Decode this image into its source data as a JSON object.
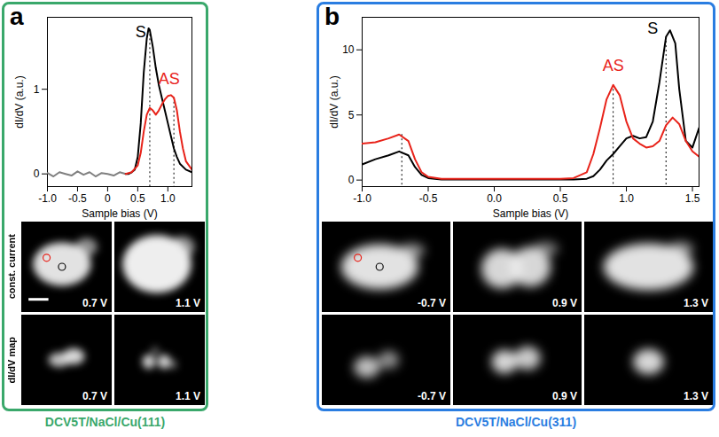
{
  "chart_data": [
    {
      "type": "line",
      "x_label": "Sample bias (V)",
      "y_label": "dI/dV (a.u.)",
      "xlim": [
        -1.0,
        1.4
      ],
      "ylim": [
        -0.15,
        1.85
      ],
      "xticks": [
        {
          "value": -1,
          "label": "-1.0"
        },
        -0.5,
        0,
        0.5,
        {
          "value": 1,
          "label": "1.0"
        }
      ],
      "yticks": [
        0,
        1
      ],
      "series": [
        {
          "color": "#808080",
          "x": [
            -1.0,
            -0.9,
            -0.8,
            -0.7,
            -0.6,
            -0.5,
            -0.4,
            -0.3,
            -0.2,
            -0.1,
            0.0,
            0.1,
            0.2,
            0.3
          ],
          "values": [
            0.01,
            -0.03,
            0.02,
            0.0,
            -0.02,
            0.03,
            -0.01,
            0.02,
            -0.03,
            0.01,
            0.0,
            -0.02,
            0.02,
            0.0
          ]
        },
        {
          "color": "#000000",
          "x": [
            0.3,
            0.35,
            0.4,
            0.45,
            0.5,
            0.55,
            0.6,
            0.65,
            0.68,
            0.7,
            0.75,
            0.8,
            0.85,
            0.9,
            0.95,
            1.0,
            1.05,
            1.1,
            1.15,
            1.2,
            1.3,
            1.4
          ],
          "values": [
            0.0,
            0.0,
            0.02,
            0.05,
            0.2,
            0.6,
            1.2,
            1.6,
            1.72,
            1.7,
            1.5,
            1.25,
            1.05,
            0.9,
            0.75,
            0.6,
            0.45,
            0.3,
            0.2,
            0.12,
            0.05,
            0.02
          ]
        },
        {
          "color": "#e8231a",
          "x": [
            0.3,
            0.4,
            0.5,
            0.55,
            0.6,
            0.65,
            0.7,
            0.75,
            0.8,
            0.85,
            0.9,
            0.95,
            1.0,
            1.05,
            1.1,
            1.15,
            1.2,
            1.25,
            1.3,
            1.4
          ],
          "values": [
            0.0,
            0.02,
            0.1,
            0.25,
            0.5,
            0.7,
            0.78,
            0.75,
            0.7,
            0.75,
            0.82,
            0.88,
            0.92,
            0.93,
            0.9,
            0.75,
            0.5,
            0.3,
            0.15,
            0.05
          ]
        }
      ],
      "annotations": [
        {
          "text": "S",
          "x": 0.55,
          "y": 1.68,
          "color": "#000000"
        },
        {
          "text": "AS",
          "x": 1.02,
          "y": 1.12,
          "color": "#e8231a"
        }
      ],
      "vlines": [
        {
          "x": 0.7,
          "y": 1.7
        },
        {
          "x": 1.1,
          "y": 0.9
        }
      ]
    },
    {
      "type": "line",
      "x_label": "Sample bias (V)",
      "y_label": "dI/dV (a.u.)",
      "xlim": [
        -1.0,
        1.55
      ],
      "ylim": [
        -0.5,
        12.5
      ],
      "xticks": [
        {
          "value": -1,
          "label": "-1.0"
        },
        -0.5,
        {
          "value": 0,
          "label": "0.0"
        },
        0.5,
        {
          "value": 1,
          "label": "1.0"
        },
        1.5
      ],
      "yticks": [
        0,
        5,
        10
      ],
      "series": [
        {
          "color": "#000000",
          "x": [
            -1.0,
            -0.9,
            -0.8,
            -0.72,
            -0.65,
            -0.6,
            -0.55,
            -0.5,
            -0.4,
            0.0,
            0.6,
            0.7,
            0.75,
            0.8,
            0.85,
            0.9,
            0.95,
            1.0,
            1.05,
            1.1,
            1.15,
            1.2,
            1.25,
            1.3,
            1.33,
            1.37,
            1.4,
            1.45,
            1.5,
            1.55
          ],
          "values": [
            1.2,
            1.6,
            1.9,
            2.2,
            1.9,
            1.0,
            0.4,
            0.15,
            0.05,
            0.05,
            0.05,
            0.1,
            0.3,
            0.8,
            1.5,
            2.0,
            2.6,
            3.2,
            3.4,
            3.2,
            3.3,
            4.5,
            7.5,
            11.0,
            11.5,
            10.5,
            7.0,
            3.0,
            2.5,
            4.0
          ]
        },
        {
          "color": "#e8231a",
          "x": [
            -1.0,
            -0.9,
            -0.8,
            -0.72,
            -0.65,
            -0.6,
            -0.55,
            -0.5,
            -0.4,
            0.0,
            0.5,
            0.6,
            0.7,
            0.75,
            0.8,
            0.85,
            0.9,
            0.95,
            1.0,
            1.05,
            1.1,
            1.15,
            1.2,
            1.25,
            1.3,
            1.35,
            1.4,
            1.45,
            1.5,
            1.55
          ],
          "values": [
            2.8,
            2.9,
            3.2,
            3.5,
            3.0,
            1.6,
            0.6,
            0.25,
            0.1,
            0.1,
            0.1,
            0.15,
            0.6,
            2.0,
            4.0,
            6.2,
            7.3,
            6.5,
            4.5,
            3.2,
            2.8,
            2.5,
            2.6,
            3.0,
            4.2,
            4.8,
            4.3,
            3.0,
            2.2,
            1.8
          ]
        }
      ],
      "annotations": [
        {
          "text": "AS",
          "x": 0.9,
          "y": 8.8,
          "color": "#e8231a"
        },
        {
          "text": "S",
          "x": 1.2,
          "y": 11.6,
          "color": "#000000"
        }
      ],
      "vlines": [
        {
          "x": -0.7,
          "y": 3.5
        },
        {
          "x": 0.9,
          "y": 7.3
        },
        {
          "x": 1.3,
          "y": 11.0
        }
      ]
    }
  ],
  "panels": [
    {
      "letter": "a",
      "caption": "DCV5T/NaCl/Cu(111)",
      "row_labels": [
        "const. current",
        "dI/dV map"
      ],
      "images": [
        [
          "0.7 V",
          "1.1 V"
        ],
        [
          "0.7 V",
          "1.1 V"
        ]
      ]
    },
    {
      "letter": "b",
      "caption": "DCV5T/NaCl/Cu(311)",
      "row_labels": [],
      "images": [
        [
          "-0.7 V",
          "0.9 V",
          "1.3 V"
        ],
        [
          "-0.7 V",
          "0.9 V",
          "1.3 V"
        ]
      ]
    }
  ]
}
